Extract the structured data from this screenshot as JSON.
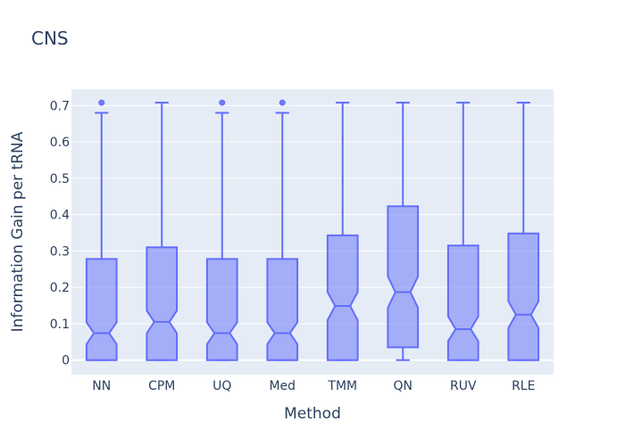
{
  "chart_data": {
    "type": "box",
    "title": "CNS",
    "xlabel": "Method",
    "ylabel": "Information Gain per tRNA",
    "ylim": [
      -0.04,
      0.745
    ],
    "yticks": [
      0,
      0.1,
      0.2,
      0.3,
      0.4,
      0.5,
      0.6,
      0.7
    ],
    "ytick_labels": [
      "0",
      "0.1",
      "0.2",
      "0.3",
      "0.4",
      "0.5",
      "0.6",
      "0.7"
    ],
    "notched": true,
    "categories": [
      "NN",
      "CPM",
      "UQ",
      "Med",
      "TMM",
      "QN",
      "RUV",
      "RLE"
    ],
    "boxes": [
      {
        "min": 0,
        "q1": 0,
        "median": 0.074,
        "q3": 0.278,
        "max": 0.68,
        "notch_low": 0.044,
        "notch_high": 0.104,
        "outliers": [
          0.708
        ]
      },
      {
        "min": 0,
        "q1": 0,
        "median": 0.105,
        "q3": 0.31,
        "max": 0.708,
        "notch_low": 0.074,
        "notch_high": 0.136,
        "outliers": []
      },
      {
        "min": 0,
        "q1": 0,
        "median": 0.074,
        "q3": 0.278,
        "max": 0.68,
        "notch_low": 0.044,
        "notch_high": 0.104,
        "outliers": [
          0.708
        ]
      },
      {
        "min": 0,
        "q1": 0,
        "median": 0.074,
        "q3": 0.278,
        "max": 0.68,
        "notch_low": 0.044,
        "notch_high": 0.104,
        "outliers": [
          0.708
        ]
      },
      {
        "min": 0,
        "q1": 0,
        "median": 0.149,
        "q3": 0.343,
        "max": 0.708,
        "notch_low": 0.11,
        "notch_high": 0.187,
        "outliers": []
      },
      {
        "min": 0,
        "q1": 0.035,
        "median": 0.187,
        "q3": 0.423,
        "max": 0.708,
        "notch_low": 0.144,
        "notch_high": 0.23,
        "outliers": []
      },
      {
        "min": 0,
        "q1": 0,
        "median": 0.085,
        "q3": 0.315,
        "max": 0.708,
        "notch_low": 0.052,
        "notch_high": 0.12,
        "outliers": []
      },
      {
        "min": 0,
        "q1": 0,
        "median": 0.125,
        "q3": 0.348,
        "max": 0.708,
        "notch_low": 0.088,
        "notch_high": 0.162,
        "outliers": []
      }
    ],
    "colors": {
      "box_fill": "#636efa",
      "box_line": "#636efa",
      "plot_bg": "#e5ecf6",
      "grid": "#ffffff",
      "text": "#2a3f5f"
    },
    "grid": true
  }
}
